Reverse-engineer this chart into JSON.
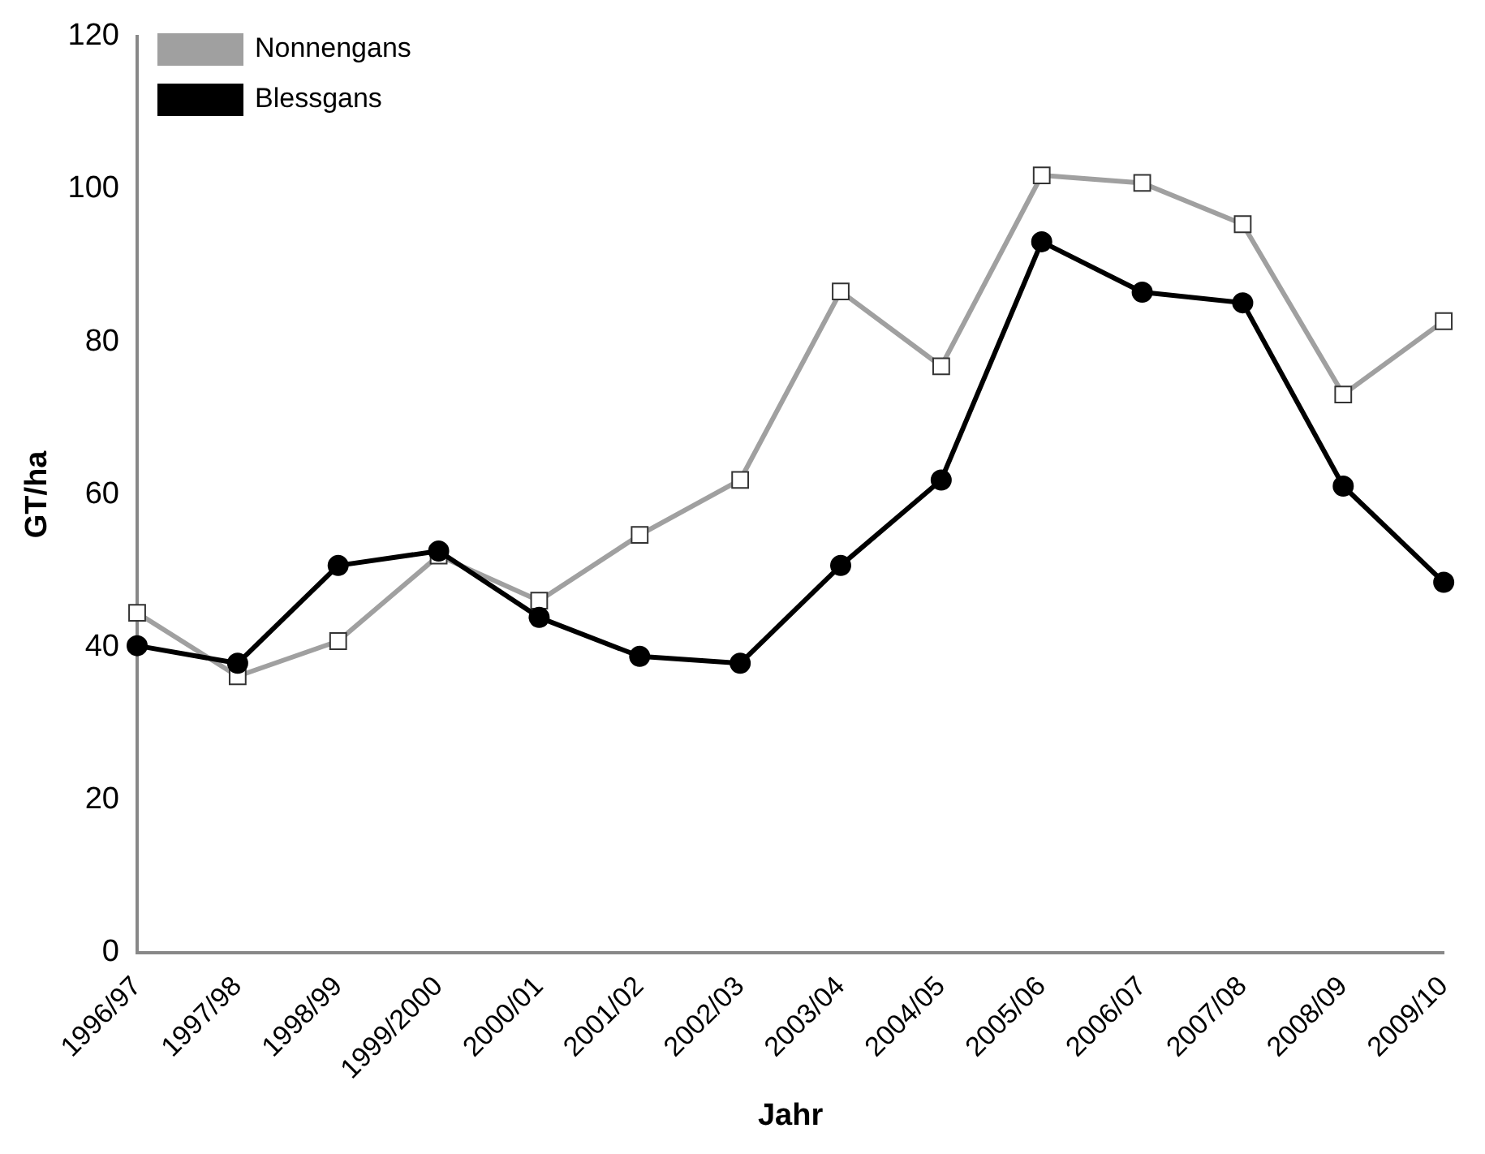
{
  "chart_data": {
    "type": "line",
    "xlabel": "Jahr",
    "ylabel": "GT/ha",
    "categories": [
      "1996/97",
      "1997/98",
      "1998/99",
      "1999/2000",
      "2000/01",
      "2001/02",
      "2002/03",
      "2003/04",
      "2004/05",
      "2005/06",
      "2006/07",
      "2007/08",
      "2008/09",
      "2009/10"
    ],
    "series": [
      {
        "name": "Nonnengans",
        "color": "#a0a0a0",
        "marker": "square",
        "values": [
          44.5,
          36.2,
          40.8,
          52,
          46.1,
          54.7,
          61.9,
          86.6,
          76.8,
          101.8,
          100.8,
          95.4,
          73.1,
          82.7
        ]
      },
      {
        "name": "Blessgans",
        "color": "#000000",
        "marker": "circle",
        "values": [
          40.2,
          37.9,
          50.7,
          52.6,
          43.9,
          38.8,
          37.9,
          50.7,
          61.9,
          93.1,
          86.5,
          85.1,
          61.1,
          48.5
        ]
      }
    ],
    "ylim": [
      0,
      120
    ],
    "yticks": [
      0,
      20,
      40,
      60,
      80,
      100,
      120
    ],
    "grid": false,
    "legend": "top left"
  }
}
